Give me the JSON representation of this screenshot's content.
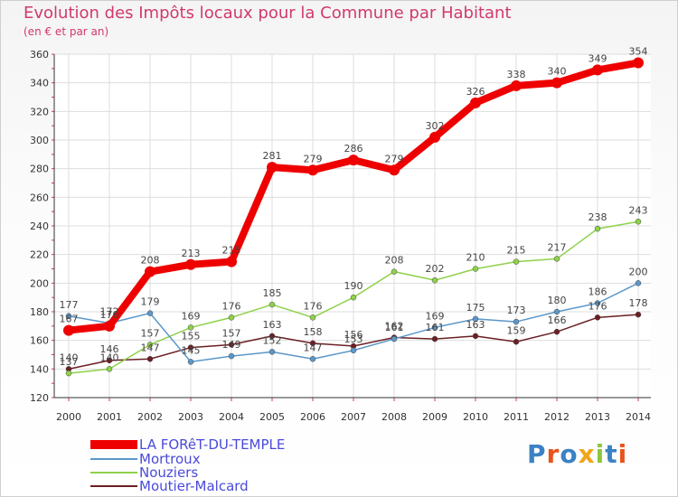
{
  "chart_data": {
    "type": "line",
    "title": "Evolution des Impôts locaux pour la Commune par Habitant",
    "subtitle": "(en € et par an)",
    "x": [
      "2000",
      "2001",
      "2002",
      "2003",
      "2004",
      "2005",
      "2006",
      "2007",
      "2008",
      "2009",
      "2010",
      "2011",
      "2012",
      "2013",
      "2014"
    ],
    "ylim": [
      120,
      360
    ],
    "yticks": [
      120,
      140,
      160,
      180,
      200,
      220,
      240,
      260,
      280,
      300,
      320,
      340,
      360
    ],
    "grid": true,
    "legend_position": "bottom-left",
    "series": [
      {
        "name": "LA FORêT-DU-TEMPLE",
        "color": "#ee0000",
        "values": [
          167,
          170,
          208,
          213,
          215,
          281,
          279,
          286,
          279,
          302,
          326,
          338,
          340,
          349,
          354
        ]
      },
      {
        "name": "Mortroux",
        "color": "#5b97c9",
        "values": [
          177,
          172,
          179,
          145,
          149,
          152,
          147,
          153,
          161,
          169,
          175,
          173,
          180,
          186,
          200
        ]
      },
      {
        "name": "Nouziers",
        "color": "#8ed14a",
        "values": [
          137,
          140,
          157,
          169,
          176,
          185,
          176,
          190,
          208,
          202,
          210,
          215,
          217,
          238,
          243
        ]
      },
      {
        "name": "Moutier-Malcard",
        "color": "#6b1f24",
        "values": [
          140,
          146,
          147,
          155,
          157,
          163,
          158,
          156,
          162,
          161,
          163,
          159,
          166,
          176,
          178
        ]
      }
    ]
  },
  "branding": {
    "logo_text": "Proxiti",
    "logo_colors": [
      "#3b82c4",
      "#e8541c",
      "#3b82c4",
      "#f2a51c",
      "#8cc63f",
      "#3b82c4",
      "#e8541c"
    ]
  }
}
